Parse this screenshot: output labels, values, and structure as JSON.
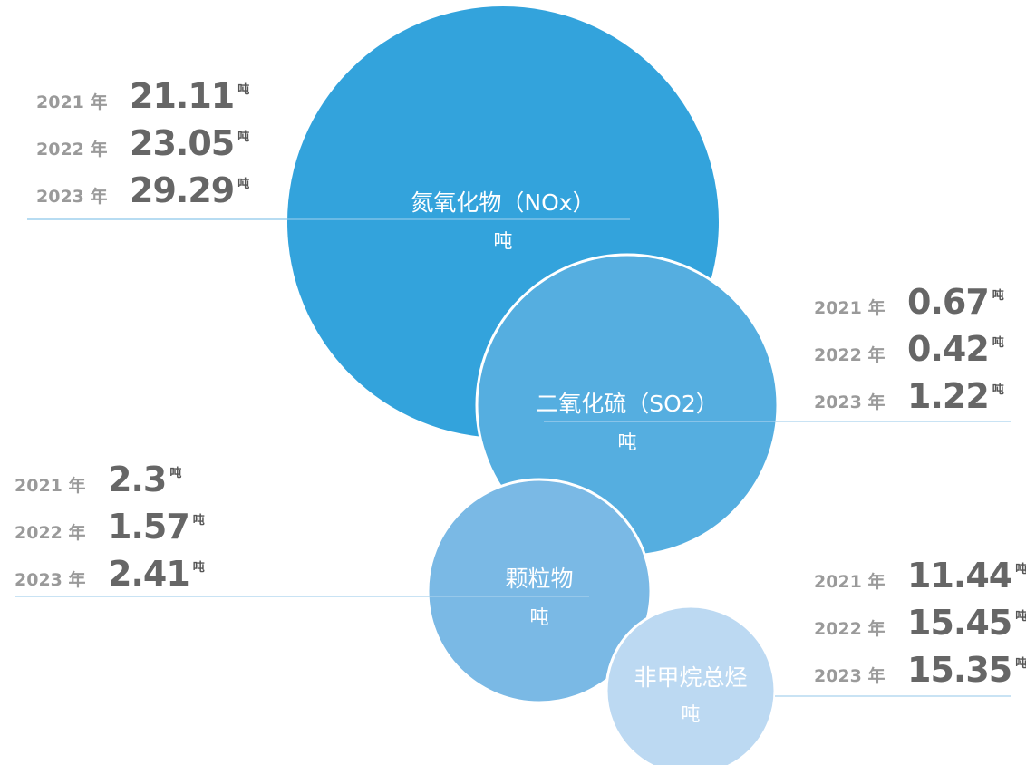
{
  "items": [
    {
      "name": "氮氧化物（NOx）",
      "unit": "吨",
      "years": [
        {
          "year": "2021 年",
          "value": 21.11
        },
        {
          "year": "2022 年",
          "value": 23.05
        },
        {
          "year": "2023 年",
          "value": 29.29
        }
      ]
    },
    {
      "name": "二氧化硫（SO2）",
      "unit": "吨",
      "years": [
        {
          "year": "2021 年",
          "value": 0.67
        },
        {
          "year": "2022 年",
          "value": 0.42
        },
        {
          "year": "2023 年",
          "value": 1.22
        }
      ]
    },
    {
      "name": "颗粒物",
      "unit": "吨",
      "years": [
        {
          "year": "2021 年",
          "value": 2.3
        },
        {
          "year": "2022 年",
          "value": 1.57
        },
        {
          "year": "2023 年",
          "value": 2.41
        }
      ]
    },
    {
      "name": "非甲烷总烃",
      "unit": "吨",
      "years": [
        {
          "year": "2021 年",
          "value": 11.44
        },
        {
          "year": "2022 年",
          "value": 15.45
        },
        {
          "year": "2023 年",
          "value": 15.35
        }
      ]
    }
  ]
}
